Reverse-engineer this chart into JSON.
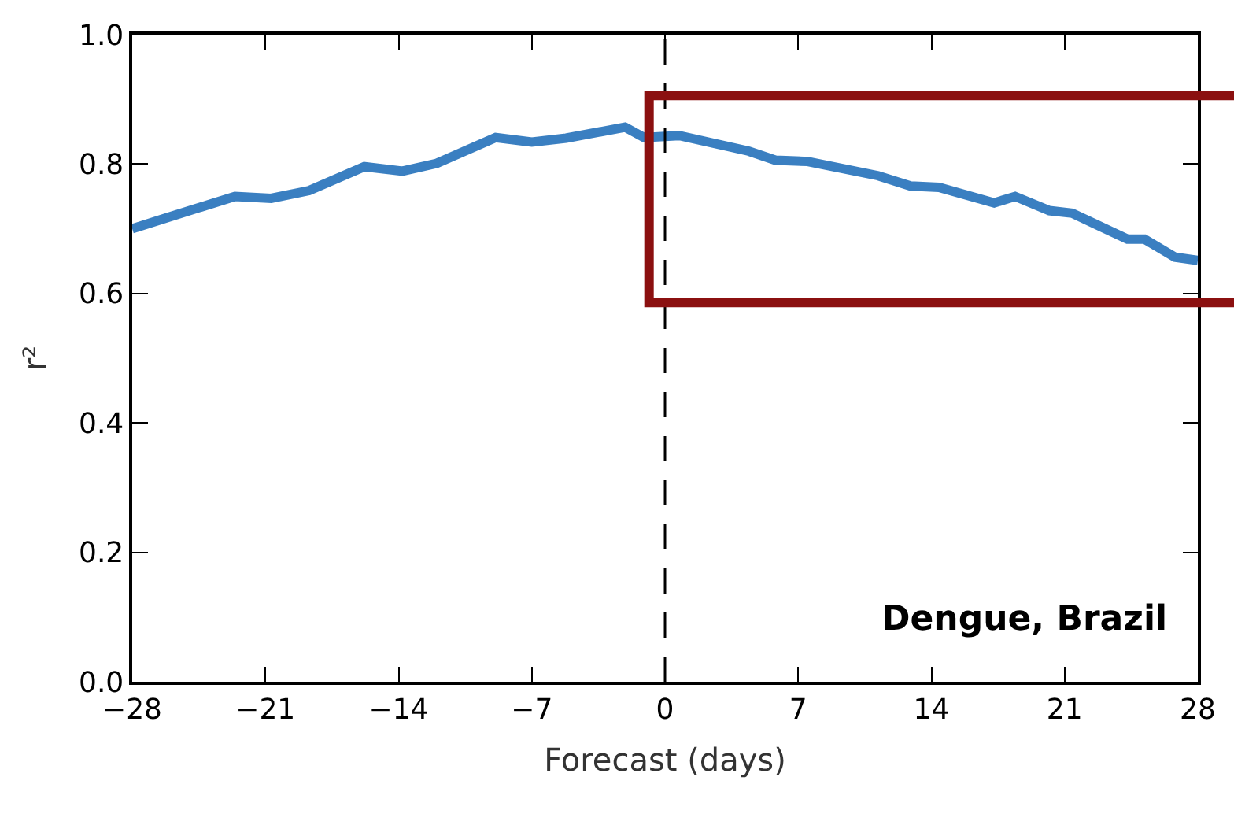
{
  "chart_data": {
    "type": "line",
    "xlabel": "Forecast (days)",
    "ylabel": "r²",
    "x": [
      -28,
      -26.3,
      -22.6,
      -20.7,
      -18.7,
      -15.8,
      -13.8,
      -12.0,
      -8.9,
      -7.0,
      -5.2,
      -2.1,
      -1.1,
      0.75,
      4.4,
      5.8,
      7.5,
      11.2,
      12.9,
      14.4,
      17.3,
      18.4,
      20.2,
      21.4,
      23.0,
      24.3,
      25.2,
      26.8,
      28
    ],
    "series": [
      {
        "color": "#3a7fc1",
        "values": [
          0.7,
          0.716,
          0.75,
          0.747,
          0.759,
          0.796,
          0.789,
          0.801,
          0.841,
          0.834,
          0.84,
          0.857,
          0.841,
          0.844,
          0.82,
          0.806,
          0.804,
          0.782,
          0.766,
          0.764,
          0.74,
          0.75,
          0.728,
          0.724,
          0.702,
          0.684,
          0.684,
          0.656,
          0.651
        ]
      }
    ],
    "xlim": [
      -28,
      28
    ],
    "xticks": [
      {
        "value": -28,
        "label": "−28"
      },
      {
        "value": -21,
        "label": "−21"
      },
      {
        "value": -14,
        "label": "−14"
      },
      {
        "value": -7,
        "label": "−7"
      },
      0,
      7,
      14,
      21,
      28
    ],
    "ylim": [
      0,
      1
    ],
    "yticks": [
      {
        "value": 0,
        "label": "0.0"
      },
      {
        "value": 0.2,
        "label": "0.2"
      },
      {
        "value": 0.4,
        "label": "0.4"
      },
      {
        "value": 0.6,
        "label": "0.6"
      },
      {
        "value": 0.8,
        "label": "0.8"
      },
      {
        "value": 1,
        "label": "1.0"
      }
    ],
    "ref_lines": [
      {
        "axis": "x",
        "value": 0,
        "color": "#000000",
        "line_style": "dashed"
      }
    ],
    "annotations": [
      "Dengue, Brazil"
    ],
    "marker": "none",
    "line_style": "solid"
  }
}
